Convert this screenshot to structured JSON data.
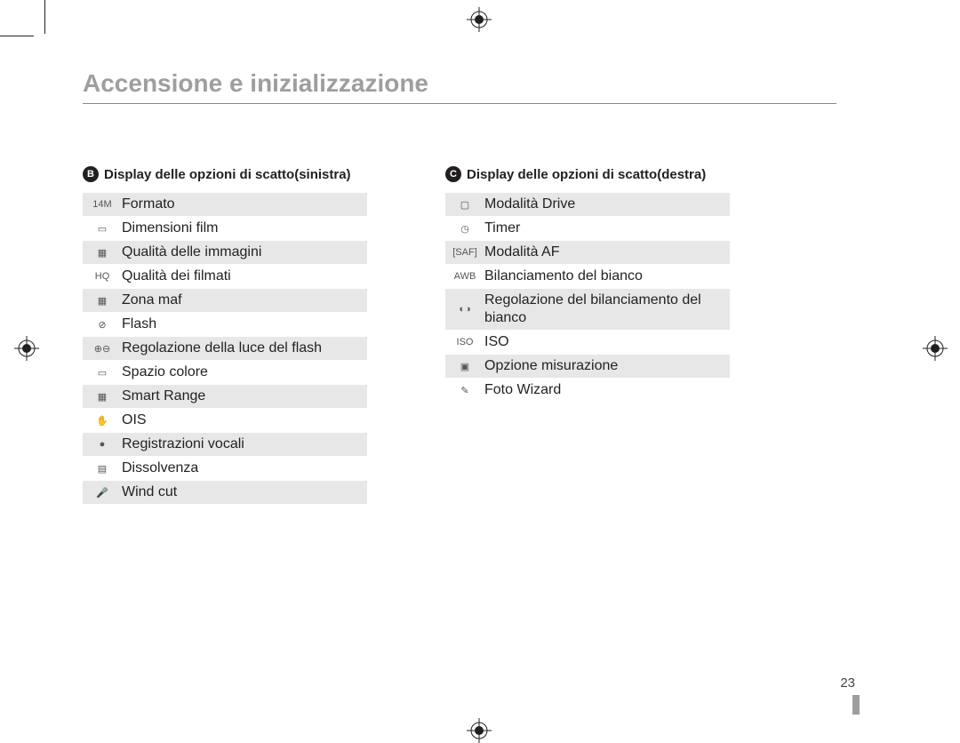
{
  "page": {
    "title": "Accensione e inizializzazione",
    "page_number": "23",
    "title_color": "#9e9e9e",
    "text_color": "#231f20",
    "alt_row_bg": "#e7e7e7"
  },
  "left": {
    "badge": "B",
    "heading": "Display delle opzioni di scatto(sinistra)",
    "rows": [
      {
        "icon": "14M",
        "label": "Formato"
      },
      {
        "icon": "▭",
        "label": "Dimensioni film"
      },
      {
        "icon": "▦",
        "label": "Qualità delle immagini"
      },
      {
        "icon": "HQ",
        "label": "Qualità dei filmati"
      },
      {
        "icon": "▦",
        "label": "Zona maf"
      },
      {
        "icon": "⊘",
        "label": "Flash"
      },
      {
        "icon": "⊕⊖",
        "label": "Regolazione della luce del flash"
      },
      {
        "icon": "▭",
        "label": "Spazio colore"
      },
      {
        "icon": "▦",
        "label": "Smart Range"
      },
      {
        "icon": "✋",
        "label": "OIS"
      },
      {
        "icon": "●",
        "label": "Registrazioni vocali"
      },
      {
        "icon": "▤",
        "label": "Dissolvenza"
      },
      {
        "icon": "🎤",
        "label": "Wind cut"
      }
    ]
  },
  "right": {
    "badge": "C",
    "heading": "Display delle opzioni di scatto(destra)",
    "rows": [
      {
        "icon": "▢",
        "label": "Modalità Drive"
      },
      {
        "icon": "◷",
        "label": "Timer"
      },
      {
        "icon": "[SAF]",
        "label": "Modalità AF"
      },
      {
        "icon": "AWB",
        "label": "Bilanciamento del bianco"
      },
      {
        "icon": "◐◑",
        "label": "Regolazione del bilanciamento del bianco"
      },
      {
        "icon": "ISO",
        "label": "ISO"
      },
      {
        "icon": "▣",
        "label": "Opzione misurazione"
      },
      {
        "icon": "✎",
        "label": "Foto Wizard"
      }
    ]
  }
}
